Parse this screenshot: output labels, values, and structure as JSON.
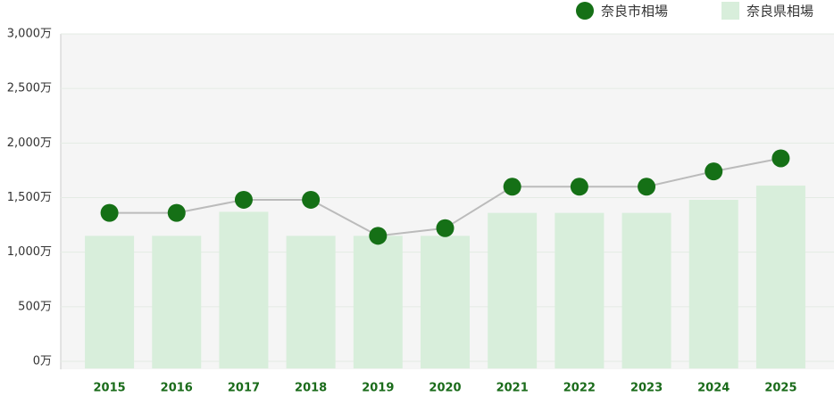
{
  "chart_data": {
    "type": "bar-line",
    "categories": [
      "2015",
      "2016",
      "2017",
      "2018",
      "2019",
      "2020",
      "2021",
      "2022",
      "2023",
      "2024",
      "2025"
    ],
    "series": [
      {
        "name": "奈良市相場",
        "color": "#157016",
        "type": "line",
        "values": [
          1360,
          1360,
          1480,
          1480,
          1150,
          1220,
          1600,
          1600,
          1600,
          1740,
          1860
        ]
      },
      {
        "name": "奈良県相場",
        "color": "#d8eedb",
        "type": "bar",
        "values": [
          1150,
          1150,
          1370,
          1150,
          1150,
          1150,
          1360,
          1360,
          1360,
          1480,
          1610
        ]
      }
    ],
    "ylim": [
      0,
      3000
    ],
    "yticks": [
      {
        "value": 0,
        "label": "0万"
      },
      {
        "value": 500,
        "label": "500万"
      },
      {
        "value": 1000,
        "label": "1,000万"
      },
      {
        "value": 1500,
        "label": "1,500万"
      },
      {
        "value": 2000,
        "label": "2,000万"
      },
      {
        "value": 2500,
        "label": "2,500万"
      },
      {
        "value": 3000,
        "label": "3,000万"
      }
    ],
    "grid": true
  }
}
